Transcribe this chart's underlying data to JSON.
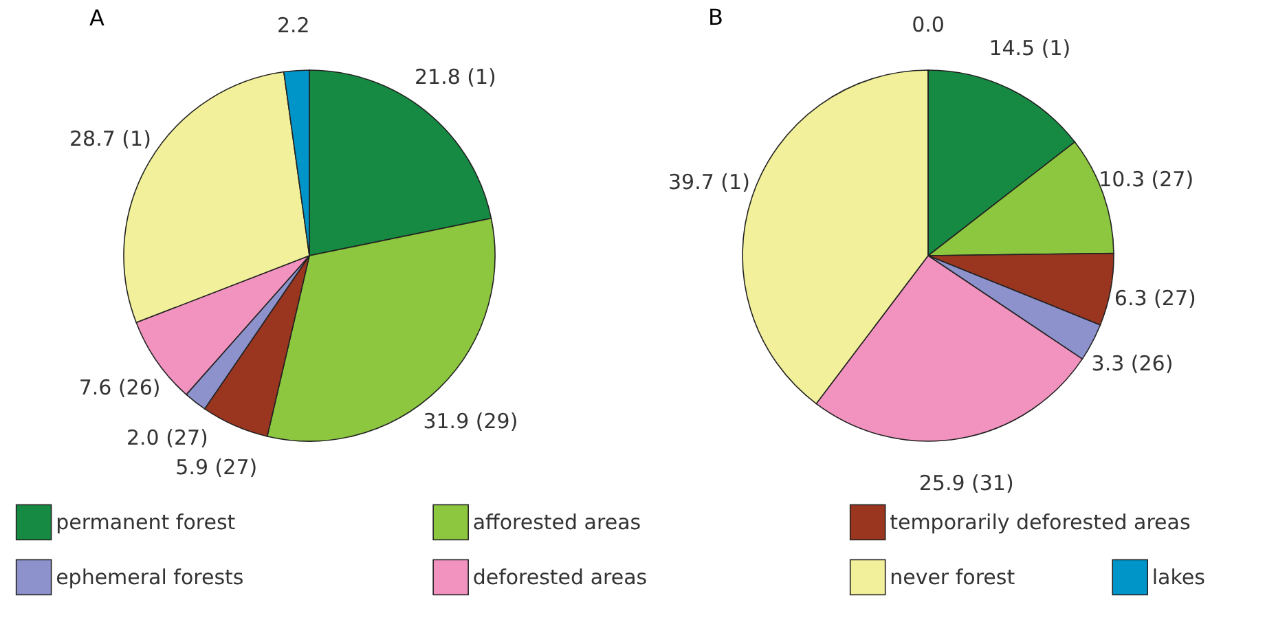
{
  "chart_data": [
    {
      "type": "pie",
      "title": "A",
      "legend": "bottom",
      "categories": [
        "permanent forest",
        "afforested areas",
        "temporarily deforested areas",
        "ephemeral forests",
        "deforested areas",
        "never forest",
        "lakes"
      ],
      "values": [
        21.8,
        31.9,
        5.9,
        2.0,
        7.6,
        28.7,
        2.2
      ],
      "value_labels": [
        "21.8 (1)",
        "31.9 (29)",
        "5.9 (27)",
        "2.0 (27)",
        "7.6 (26)",
        "28.7 (1)",
        "2.2"
      ],
      "colors": [
        "#168a42",
        "#8dc63f",
        "#9a3520",
        "#8e92cc",
        "#f293bf",
        "#f2f09a",
        "#0095c8"
      ]
    },
    {
      "type": "pie",
      "title": "B",
      "categories": [
        null,
        null,
        null,
        null,
        null,
        null,
        null
      ],
      "values": [
        14.5,
        10.3,
        6.3,
        3.3,
        25.9,
        39.7,
        0.0
      ],
      "value_labels": [
        "14.5 (1)",
        "10.3 (27)",
        "6.3 (27)",
        "3.3 (26)",
        "25.9 (31)",
        "39.7 (1)",
        "0.0"
      ],
      "colors": [
        "#168a42",
        "#8dc63f",
        "#9a3520",
        "#8e92cc",
        "#f293bf",
        "#f2f09a",
        "#0095c8"
      ]
    }
  ]
}
